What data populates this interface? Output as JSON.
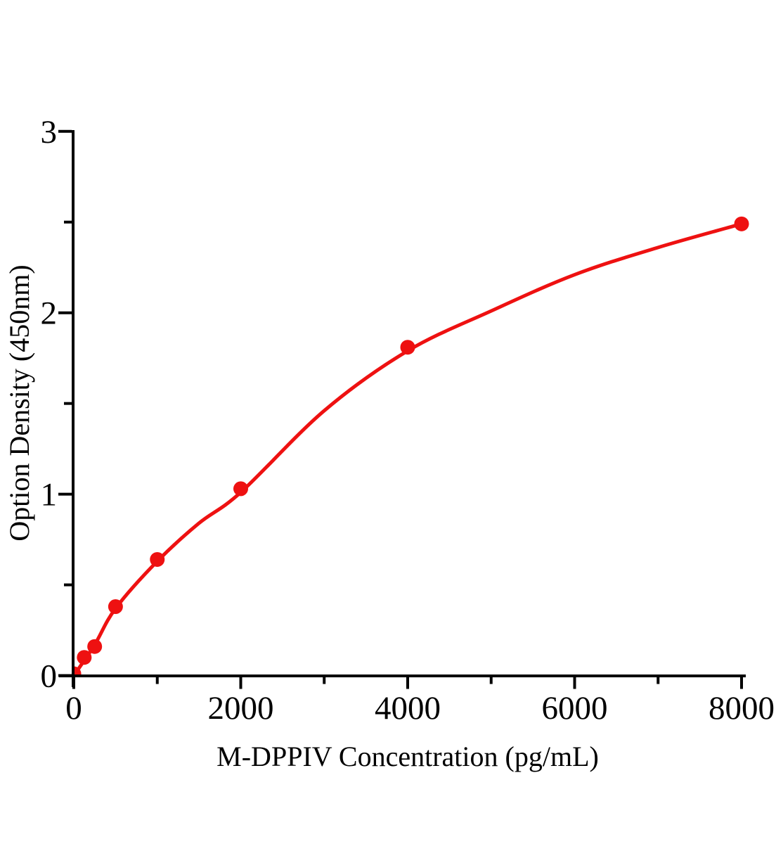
{
  "figure": {
    "background_color": "#ffffff",
    "axis_color": "#000000",
    "accent_red": "#ee1111"
  },
  "chart_data": {
    "type": "scatter",
    "title": "",
    "xlabel": "M-DPPIV Concentration (pg/mL)",
    "ylabel": "Option Density (450nm)",
    "xlim": [
      0,
      8000
    ],
    "ylim": [
      0,
      3
    ],
    "grid": false,
    "legend": false,
    "x_major_ticks": [
      0,
      2000,
      4000,
      6000,
      8000
    ],
    "x_minor_ticks": [
      1000,
      3000,
      5000,
      7000
    ],
    "y_major_ticks": [
      0,
      1,
      2,
      3
    ],
    "y_minor_ticks": [
      0.5,
      1.5,
      2.5
    ],
    "series": [
      {
        "name": "standard-points",
        "type": "scatter",
        "marker": "circle",
        "color": "#ee1111",
        "x": [
          0,
          125,
          250,
          500,
          1000,
          2000,
          4000,
          8000
        ],
        "y": [
          0.01,
          0.1,
          0.16,
          0.38,
          0.64,
          1.03,
          1.81,
          2.49
        ]
      },
      {
        "name": "fitted-curve",
        "type": "line",
        "color": "#ee1111",
        "x": [
          0,
          250,
          500,
          1000,
          1500,
          2000,
          3000,
          4000,
          5000,
          6000,
          7000,
          8000
        ],
        "y": [
          0.0,
          0.17,
          0.37,
          0.63,
          0.84,
          1.01,
          1.46,
          1.79,
          2.01,
          2.21,
          2.36,
          2.49
        ]
      }
    ]
  }
}
